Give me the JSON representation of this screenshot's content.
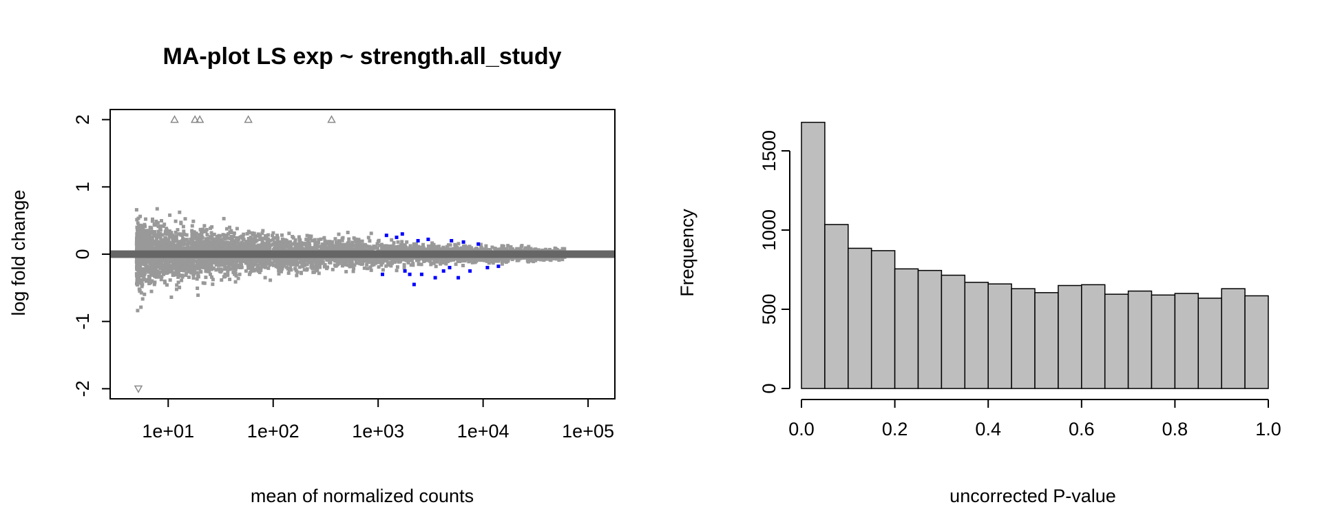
{
  "chart_data": [
    {
      "type": "scatter",
      "title": "MA-plot LS exp ~ strength.all_study",
      "xlabel": "mean of normalized counts",
      "ylabel": "log fold change",
      "x_scale": "log10",
      "xlim": [
        2.8,
        180000
      ],
      "ylim": [
        -2.15,
        2.15
      ],
      "x_ticks": [
        10,
        100,
        1000,
        10000,
        100000
      ],
      "x_tick_labels": [
        "1e+01",
        "1e+02",
        "1e+03",
        "1e+04",
        "1e+05"
      ],
      "y_ticks": [
        -2,
        -1,
        0,
        1,
        2
      ],
      "y_tick_labels": [
        "-2",
        "-1",
        "0",
        "1",
        "2"
      ],
      "reference_line": {
        "y": 0,
        "color": "#666666"
      },
      "colors": {
        "nonsignificant": "#999999",
        "significant": "#0000FF",
        "outlier": "#888888"
      },
      "series": [
        {
          "points": "dense cloud of genes",
          "significant": [
            [
              1200,
              0.28
            ],
            [
              1500,
              0.25
            ],
            [
              1800,
              -0.25
            ],
            [
              2000,
              -0.3
            ],
            [
              2200,
              -0.45
            ],
            [
              2600,
              -0.3
            ],
            [
              3000,
              0.22
            ],
            [
              3500,
              -0.35
            ],
            [
              4200,
              -0.25
            ],
            [
              5000,
              0.2
            ],
            [
              5800,
              -0.35
            ],
            [
              6500,
              0.18
            ],
            [
              7500,
              -0.25
            ],
            [
              9000,
              0.15
            ],
            [
              11000,
              -0.2
            ],
            [
              14000,
              -0.18
            ],
            [
              1100,
              -0.3
            ],
            [
              1700,
              0.3
            ],
            [
              2400,
              0.2
            ],
            [
              4800,
              -0.2
            ]
          ],
          "outliers_up": [
            11.5,
            18,
            20,
            58,
            360
          ],
          "outliers_down": [
            5.2
          ]
        }
      ],
      "grid": false
    },
    {
      "type": "bar",
      "title": "",
      "xlabel": "uncorrected P-value",
      "ylabel": "Frequency",
      "bin_edges": [
        0.0,
        0.05,
        0.1,
        0.15,
        0.2,
        0.25,
        0.3,
        0.35,
        0.4,
        0.45,
        0.5,
        0.55,
        0.6,
        0.65,
        0.7,
        0.75,
        0.8,
        0.85,
        0.9,
        0.95,
        1.0
      ],
      "values": [
        1680,
        1035,
        885,
        870,
        755,
        745,
        715,
        670,
        660,
        630,
        605,
        650,
        655,
        595,
        615,
        590,
        600,
        570,
        630,
        585
      ],
      "xlim": [
        0,
        1
      ],
      "ylim": [
        0,
        1700
      ],
      "x_ticks": [
        0.0,
        0.2,
        0.4,
        0.6,
        0.8,
        1.0
      ],
      "x_tick_labels": [
        "0.0",
        "0.2",
        "0.4",
        "0.6",
        "0.8",
        "1.0"
      ],
      "y_ticks": [
        0,
        500,
        1000,
        1500
      ],
      "y_tick_labels": [
        "0",
        "500",
        "1000",
        "1500"
      ],
      "colors": {
        "bar_fill": "#BEBEBE",
        "bar_stroke": "#000000"
      },
      "grid": false
    }
  ]
}
